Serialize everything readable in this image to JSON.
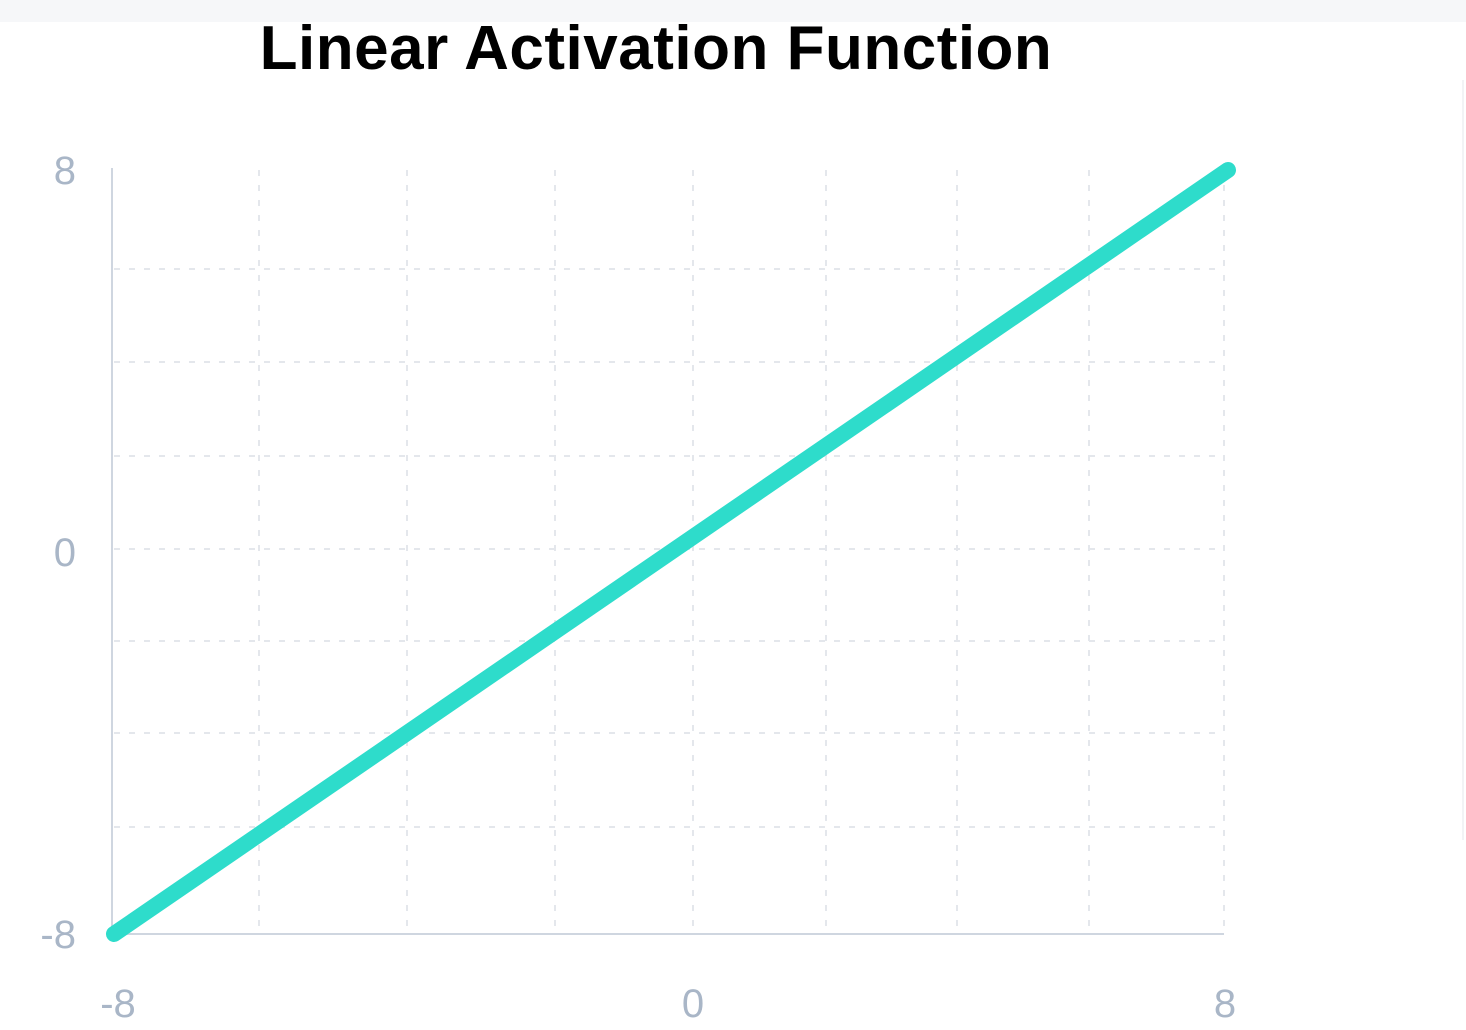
{
  "chart_data": {
    "type": "line",
    "title": "Linear Activation Function",
    "xlabel": "",
    "ylabel": "",
    "xlim": [
      -8,
      8
    ],
    "ylim": [
      -8,
      8
    ],
    "x_ticks": [
      "-8",
      "0",
      "8"
    ],
    "y_ticks": [
      "8",
      "0",
      "-8"
    ],
    "grid": true,
    "series": [
      {
        "x": [
          -8,
          8
        ],
        "y": [
          -8,
          8
        ],
        "color": "#2edccb"
      }
    ]
  },
  "colors": {
    "line": "#2edccb",
    "axis": "#cfd6e0",
    "grid": "#e4e7ec",
    "tick_text": "#a9b6c7"
  }
}
